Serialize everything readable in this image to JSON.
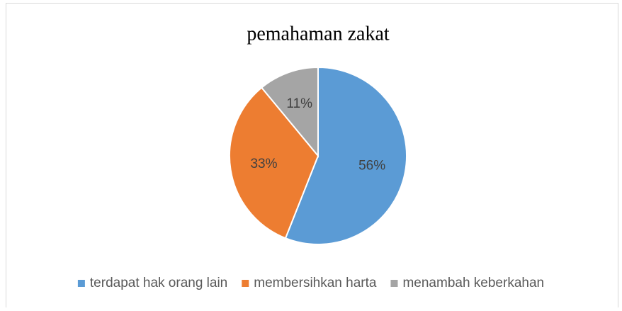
{
  "chart_data": {
    "type": "pie",
    "title": "pemahaman zakat",
    "categories": [
      "terdapat hak orang lain",
      "membersihkan harta",
      "menambah keberkahan"
    ],
    "values": [
      56,
      33,
      11
    ],
    "value_labels": [
      "56%",
      "33%",
      "11%"
    ],
    "colors": [
      "#5b9bd5",
      "#ed7d31",
      "#a5a5a5"
    ],
    "legend": "bottom"
  }
}
